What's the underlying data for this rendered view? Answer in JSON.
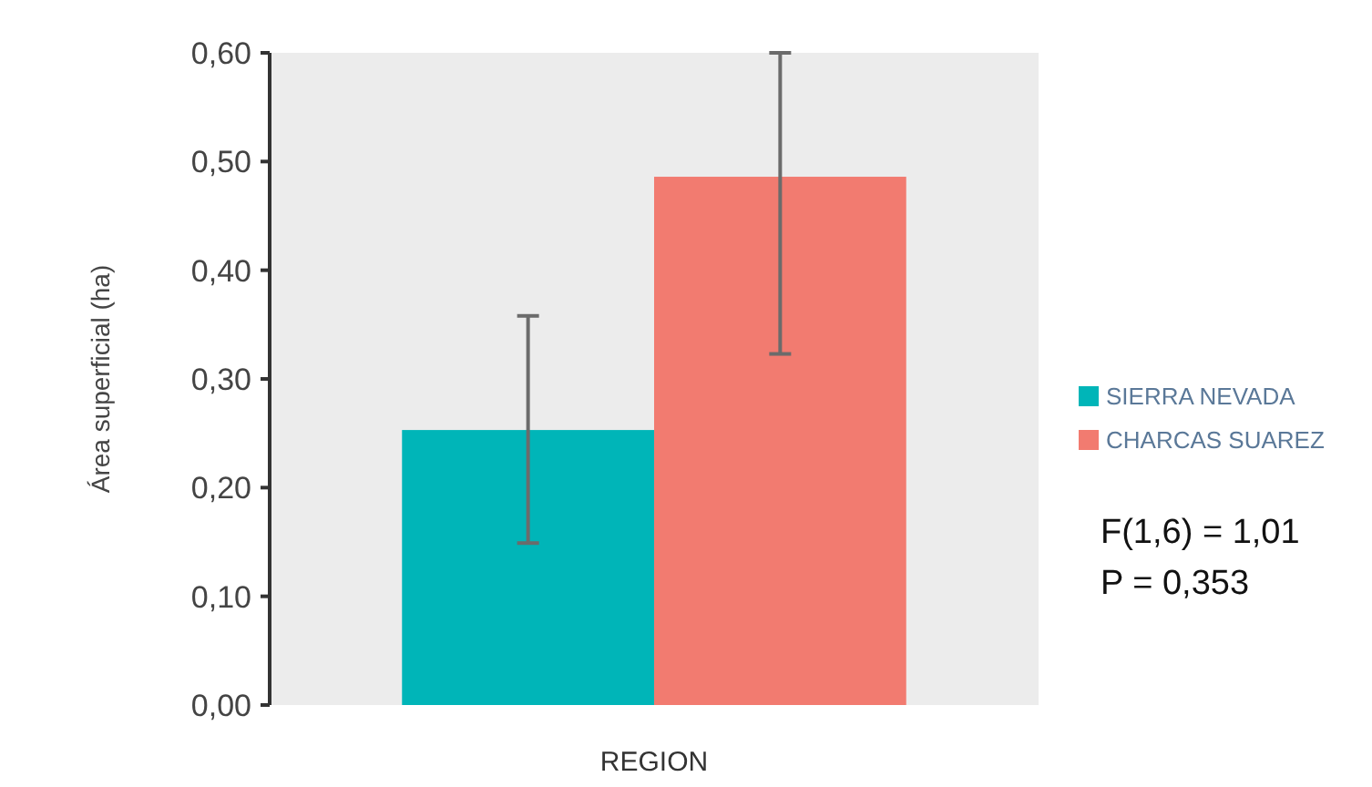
{
  "chart_data": {
    "type": "bar",
    "xlabel": "REGION",
    "ylabel": "Área superficial (ha)",
    "categories": [
      null
    ],
    "series": [
      {
        "name": "SIERRA NEVADA",
        "color": "#00b5b8",
        "values": [
          0.253
        ],
        "errors": [
          [
            0.149,
            0.358
          ]
        ]
      },
      {
        "name": "CHARCAS SUAREZ",
        "color": "#f27b70",
        "values": [
          0.486
        ],
        "errors": [
          [
            0.323,
            0.6
          ]
        ]
      }
    ],
    "ylim": [
      0,
      0.6
    ],
    "yticks": [
      {
        "value": 0,
        "label": "0,00"
      },
      {
        "value": 0.1,
        "label": "0,10"
      },
      {
        "value": 0.2,
        "label": "0,20"
      },
      {
        "value": 0.3,
        "label": "0,30"
      },
      {
        "value": 0.4,
        "label": "0,40"
      },
      {
        "value": 0.5,
        "label": "0,50"
      },
      {
        "value": 0.6,
        "label": "0,60"
      }
    ],
    "legend": "right",
    "annotations": [
      "F(1,6) = 1,01",
      "P = 0,353"
    ]
  }
}
